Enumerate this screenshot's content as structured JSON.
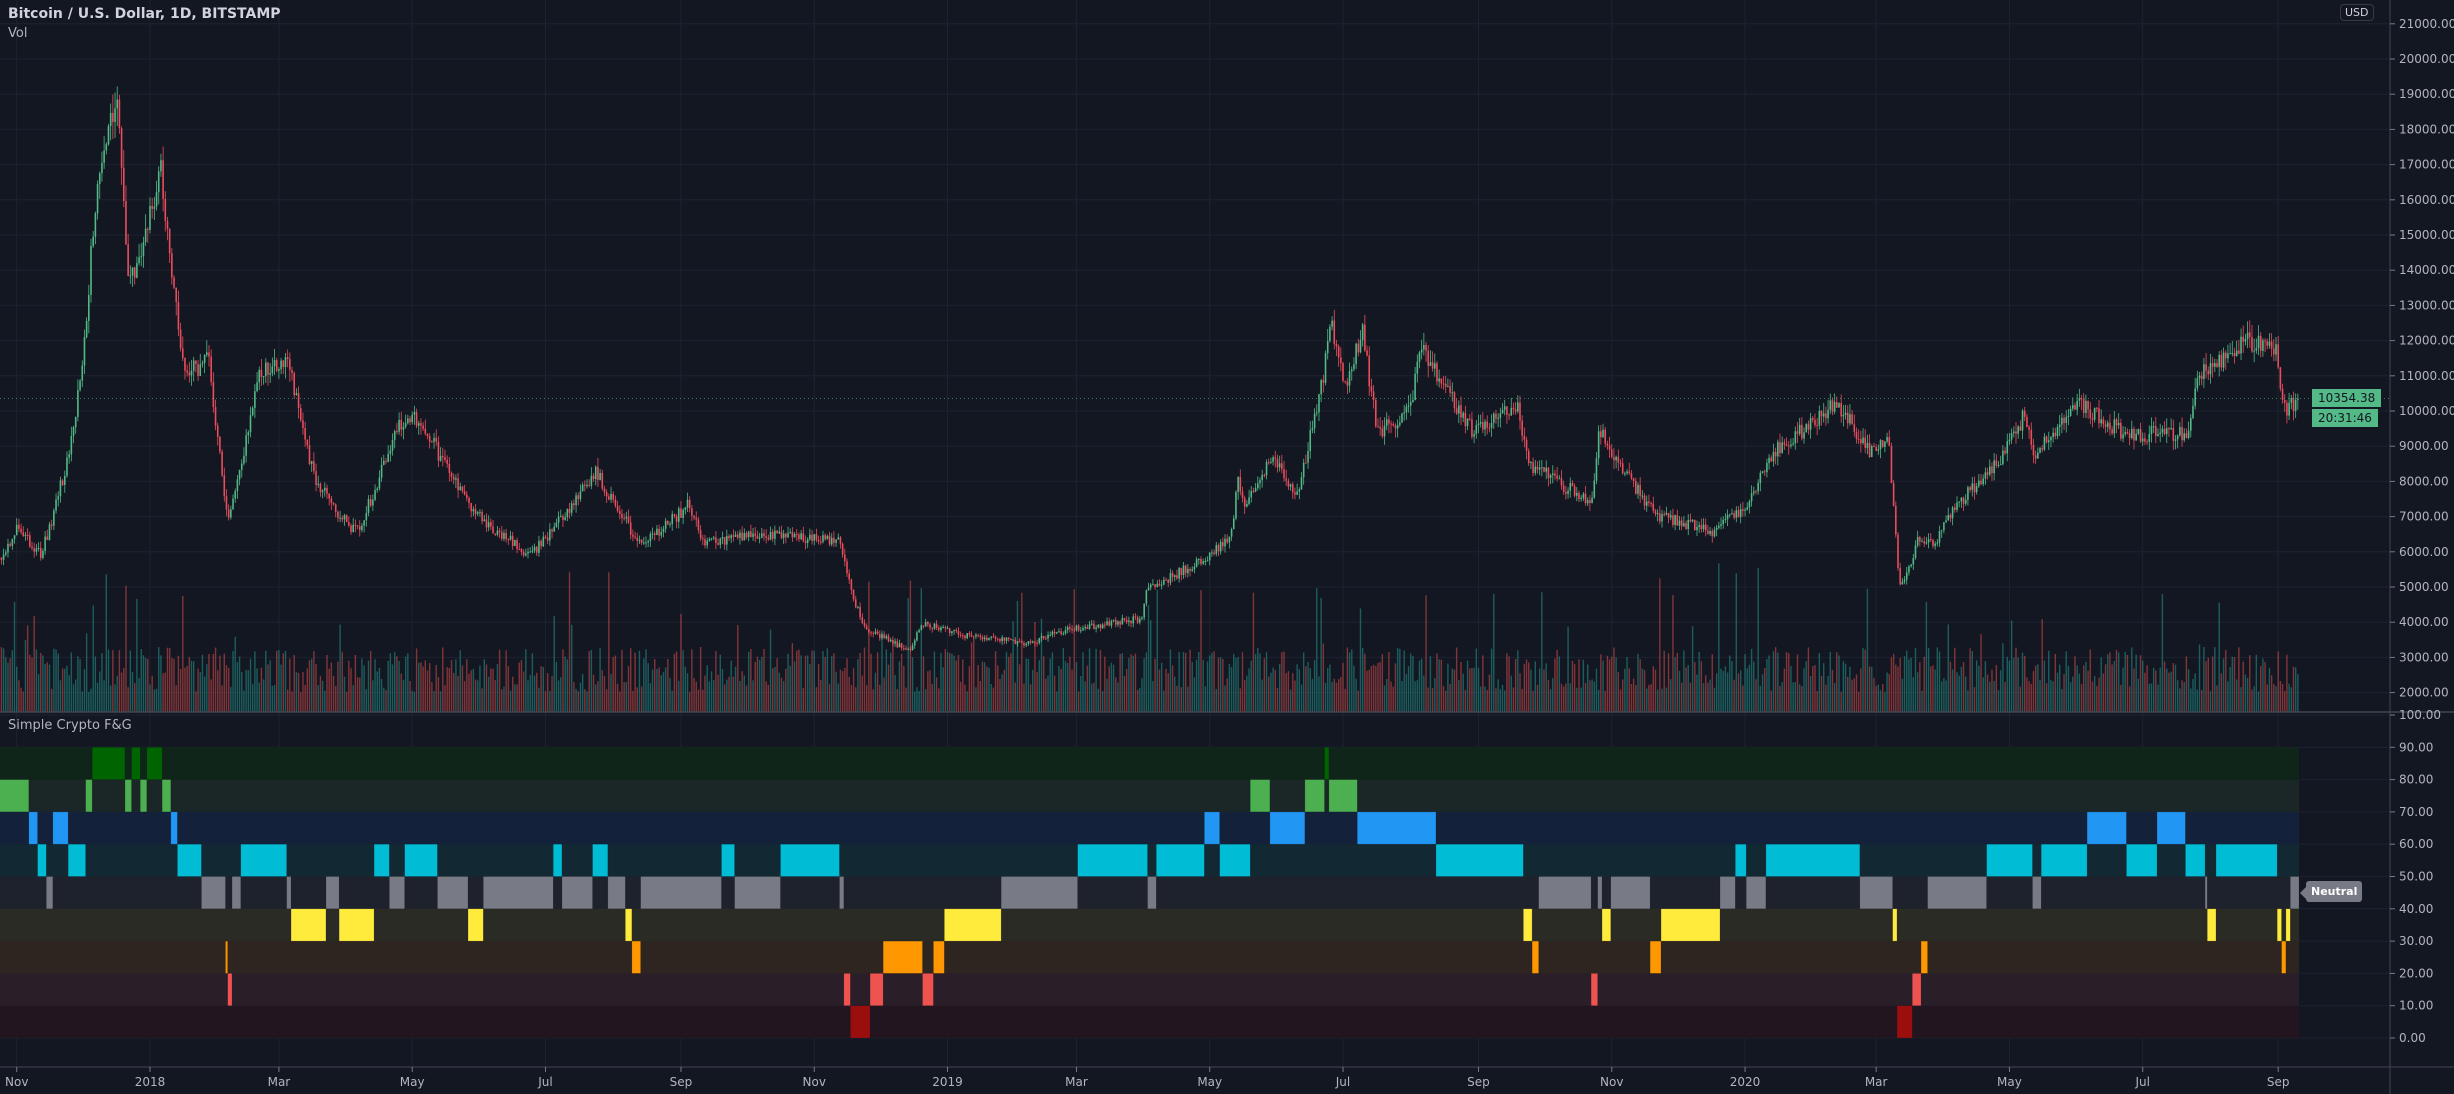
{
  "header": {
    "title": "Bitcoin / U.S. Dollar, 1D, BITSTAMP",
    "volume_label": "Vol",
    "currency": "USD"
  },
  "indicator": {
    "title": "Simple Crypto F&G",
    "current_label": "Neutral"
  },
  "last_price": "10354.38",
  "countdown": "20:31:46",
  "colors": {
    "background": "#131722",
    "up": "#53b987",
    "down": "#eb4d5c",
    "grid": "#1e2230"
  },
  "time_axis": {
    "ticks": [
      {
        "label": "Nov",
        "date": "2017-11-01"
      },
      {
        "label": "2018",
        "date": "2018-01-01"
      },
      {
        "label": "Mar",
        "date": "2018-03-01"
      },
      {
        "label": "May",
        "date": "2018-05-01"
      },
      {
        "label": "Jul",
        "date": "2018-07-01"
      },
      {
        "label": "Sep",
        "date": "2018-09-01"
      },
      {
        "label": "Nov",
        "date": "2018-11-01"
      },
      {
        "label": "2019",
        "date": "2019-01-01"
      },
      {
        "label": "Mar",
        "date": "2019-03-01"
      },
      {
        "label": "May",
        "date": "2019-05-01"
      },
      {
        "label": "Jul",
        "date": "2019-07-01"
      },
      {
        "label": "Sep",
        "date": "2019-09-01"
      },
      {
        "label": "Nov",
        "date": "2019-11-01"
      },
      {
        "label": "2020",
        "date": "2020-01-01"
      },
      {
        "label": "Mar",
        "date": "2020-03-01"
      },
      {
        "label": "May",
        "date": "2020-05-01"
      },
      {
        "label": "Jul",
        "date": "2020-07-01"
      },
      {
        "label": "Sep",
        "date": "2020-09-01"
      }
    ]
  },
  "chart_data": [
    {
      "type": "candlestick",
      "title": "Bitcoin / U.S. Dollar, 1D, BITSTAMP",
      "x_range": [
        "2017-10-24",
        "2020-09-10"
      ],
      "ylim": [
        1500,
        21000
      ],
      "y_ticks": [
        "2000.00",
        "3000.00",
        "4000.00",
        "5000.00",
        "6000.00",
        "7000.00",
        "8000.00",
        "9000.00",
        "10000.00",
        "11000.00",
        "12000.00",
        "13000.00",
        "14000.00",
        "15000.00",
        "16000.00",
        "17000.00",
        "18000.00",
        "19000.00",
        "20000.00",
        "21000.00"
      ],
      "close_anchors": [
        [
          "2017-10-24",
          5700
        ],
        [
          "2017-11-01",
          6700
        ],
        [
          "2017-11-12",
          5900
        ],
        [
          "2017-11-28",
          9800
        ],
        [
          "2017-12-07",
          16000
        ],
        [
          "2017-12-17",
          19300
        ],
        [
          "2017-12-22",
          13500
        ],
        [
          "2017-12-28",
          14500
        ],
        [
          "2018-01-06",
          17000
        ],
        [
          "2018-01-17",
          11000
        ],
        [
          "2018-01-28",
          11500
        ],
        [
          "2018-02-06",
          6900
        ],
        [
          "2018-02-20",
          11200
        ],
        [
          "2018-03-05",
          11500
        ],
        [
          "2018-03-18",
          8000
        ],
        [
          "2018-04-01",
          6800
        ],
        [
          "2018-04-06",
          6600
        ],
        [
          "2018-04-24",
          9600
        ],
        [
          "2018-05-05",
          9800
        ],
        [
          "2018-05-28",
          7200
        ],
        [
          "2018-06-24",
          5900
        ],
        [
          "2018-07-24",
          8300
        ],
        [
          "2018-08-14",
          6200
        ],
        [
          "2018-09-04",
          7300
        ],
        [
          "2018-09-12",
          6300
        ],
        [
          "2018-10-15",
          6500
        ],
        [
          "2018-11-13",
          6300
        ],
        [
          "2018-11-20",
          4500
        ],
        [
          "2018-11-25",
          3800
        ],
        [
          "2018-12-15",
          3200
        ],
        [
          "2018-12-20",
          4000
        ],
        [
          "2019-01-10",
          3600
        ],
        [
          "2019-02-07",
          3400
        ],
        [
          "2019-02-25",
          3800
        ],
        [
          "2019-03-31",
          4100
        ],
        [
          "2019-04-02",
          4900
        ],
        [
          "2019-05-10",
          6300
        ],
        [
          "2019-05-14",
          8000
        ],
        [
          "2019-05-17",
          7300
        ],
        [
          "2019-05-30",
          8700
        ],
        [
          "2019-06-10",
          7700
        ],
        [
          "2019-06-26",
          12500
        ],
        [
          "2019-07-02",
          10600
        ],
        [
          "2019-07-10",
          12300
        ],
        [
          "2019-07-17",
          9400
        ],
        [
          "2019-07-31",
          10000
        ],
        [
          "2019-08-06",
          11800
        ],
        [
          "2019-08-29",
          9500
        ],
        [
          "2019-09-19",
          10200
        ],
        [
          "2019-09-24",
          8500
        ],
        [
          "2019-10-23",
          7400
        ],
        [
          "2019-10-26",
          9500
        ],
        [
          "2019-11-22",
          7000
        ],
        [
          "2019-12-17",
          6600
        ],
        [
          "2019-12-31",
          7200
        ],
        [
          "2020-01-14",
          8800
        ],
        [
          "2020-02-12",
          10300
        ],
        [
          "2020-02-27",
          8800
        ],
        [
          "2020-03-07",
          9100
        ],
        [
          "2020-03-12",
          5000
        ],
        [
          "2020-03-20",
          6300
        ],
        [
          "2020-03-28",
          6300
        ],
        [
          "2020-04-06",
          7300
        ],
        [
          "2020-04-29",
          8800
        ],
        [
          "2020-05-08",
          9900
        ],
        [
          "2020-05-12",
          8800
        ],
        [
          "2020-06-01",
          10200
        ],
        [
          "2020-06-24",
          9300
        ],
        [
          "2020-07-21",
          9400
        ],
        [
          "2020-07-27",
          11000
        ],
        [
          "2020-08-17",
          12000
        ],
        [
          "2020-08-31",
          11700
        ],
        [
          "2020-09-04",
          10000
        ],
        [
          "2020-09-10",
          10354.38
        ]
      ]
    },
    {
      "type": "band-heatmap",
      "title": "Simple Crypto F&G",
      "ylim": [
        0,
        100
      ],
      "y_ticks": [
        "0.00",
        "10.00",
        "20.00",
        "30.00",
        "40.00",
        "50.00",
        "60.00",
        "70.00",
        "80.00",
        "90.00",
        "100.00"
      ],
      "bands": [
        {
          "range": [
            80,
            90
          ],
          "bg": "#0f2519",
          "fill": "#006400"
        },
        {
          "range": [
            70,
            80
          ],
          "bg": "#1b2727",
          "fill": "#4caf50"
        },
        {
          "range": [
            60,
            70
          ],
          "bg": "#13213a",
          "fill": "#2196f3"
        },
        {
          "range": [
            50,
            60
          ],
          "bg": "#122832",
          "fill": "#00bcd4"
        },
        {
          "range": [
            40,
            50
          ],
          "bg": "#1e222c",
          "fill": "#787b86"
        },
        {
          "range": [
            30,
            40
          ],
          "bg": "#2b2b25",
          "fill": "#ffeb3b"
        },
        {
          "range": [
            20,
            30
          ],
          "bg": "#2e2520",
          "fill": "#ff9800"
        },
        {
          "range": [
            10,
            20
          ],
          "bg": "#2a1e29",
          "fill": "#ef5350"
        },
        {
          "range": [
            0,
            10
          ],
          "bg": "#22151f",
          "fill": "#9a0e0e"
        }
      ],
      "values": [
        [
          "2017-10-24",
          75
        ],
        [
          "2017-11-07",
          65
        ],
        [
          "2017-11-11",
          55
        ],
        [
          "2017-11-15",
          45
        ],
        [
          "2017-11-18",
          65
        ],
        [
          "2017-11-25",
          55
        ],
        [
          "2017-12-03",
          75
        ],
        [
          "2017-12-06",
          86
        ],
        [
          "2017-12-21",
          75
        ],
        [
          "2017-12-24",
          86
        ],
        [
          "2017-12-28",
          75
        ],
        [
          "2017-12-31",
          86
        ],
        [
          "2018-01-07",
          75
        ],
        [
          "2018-01-11",
          65
        ],
        [
          "2018-01-14",
          55
        ],
        [
          "2018-01-25",
          45
        ],
        [
          "2018-02-05",
          25
        ],
        [
          "2018-02-06",
          15
        ],
        [
          "2018-02-08",
          45
        ],
        [
          "2018-02-12",
          55
        ],
        [
          "2018-03-05",
          45
        ],
        [
          "2018-03-07",
          35
        ],
        [
          "2018-03-23",
          45
        ],
        [
          "2018-03-29",
          35
        ],
        [
          "2018-04-14",
          55
        ],
        [
          "2018-04-21",
          45
        ],
        [
          "2018-04-28",
          55
        ],
        [
          "2018-05-13",
          45
        ],
        [
          "2018-05-27",
          35
        ],
        [
          "2018-06-03",
          45
        ],
        [
          "2018-07-05",
          55
        ],
        [
          "2018-07-09",
          45
        ],
        [
          "2018-07-23",
          55
        ],
        [
          "2018-07-30",
          45
        ],
        [
          "2018-08-07",
          35
        ],
        [
          "2018-08-10",
          25
        ],
        [
          "2018-08-14",
          45
        ],
        [
          "2018-09-20",
          55
        ],
        [
          "2018-09-26",
          45
        ],
        [
          "2018-10-17",
          55
        ],
        [
          "2018-11-13",
          45
        ],
        [
          "2018-11-15",
          15
        ],
        [
          "2018-11-18",
          5
        ],
        [
          "2018-11-27",
          15
        ],
        [
          "2018-12-03",
          25
        ],
        [
          "2018-12-21",
          15
        ],
        [
          "2018-12-26",
          25
        ],
        [
          "2018-12-31",
          35
        ],
        [
          "2019-01-26",
          45
        ],
        [
          "2019-03-02",
          55
        ],
        [
          "2019-04-03",
          45
        ],
        [
          "2019-04-07",
          55
        ],
        [
          "2019-04-29",
          65
        ],
        [
          "2019-05-06",
          55
        ],
        [
          "2019-05-20",
          75
        ],
        [
          "2019-05-29",
          65
        ],
        [
          "2019-06-14",
          75
        ],
        [
          "2019-06-23",
          92
        ],
        [
          "2019-06-25",
          75
        ],
        [
          "2019-07-08",
          65
        ],
        [
          "2019-08-13",
          55
        ],
        [
          "2019-09-22",
          35
        ],
        [
          "2019-09-26",
          25
        ],
        [
          "2019-09-29",
          45
        ],
        [
          "2019-10-23",
          15
        ],
        [
          "2019-10-26",
          45
        ],
        [
          "2019-10-28",
          35
        ],
        [
          "2019-11-01",
          45
        ],
        [
          "2019-11-19",
          25
        ],
        [
          "2019-11-24",
          35
        ],
        [
          "2019-12-21",
          45
        ],
        [
          "2019-12-28",
          55
        ],
        [
          "2020-01-02",
          45
        ],
        [
          "2020-01-11",
          55
        ],
        [
          "2020-02-23",
          45
        ],
        [
          "2020-03-09",
          35
        ],
        [
          "2020-03-11",
          5
        ],
        [
          "2020-03-18",
          15
        ],
        [
          "2020-03-22",
          25
        ],
        [
          "2020-03-25",
          45
        ],
        [
          "2020-04-21",
          55
        ],
        [
          "2020-05-12",
          45
        ],
        [
          "2020-05-16",
          55
        ],
        [
          "2020-06-06",
          65
        ],
        [
          "2020-06-24",
          55
        ],
        [
          "2020-07-08",
          65
        ],
        [
          "2020-07-21",
          55
        ],
        [
          "2020-07-30",
          45
        ],
        [
          "2020-07-31",
          35
        ],
        [
          "2020-08-04",
          55
        ],
        [
          "2020-09-01",
          35
        ],
        [
          "2020-09-03",
          25
        ],
        [
          "2020-09-05",
          35
        ],
        [
          "2020-09-07",
          45
        ]
      ],
      "end": "2020-09-10"
    }
  ]
}
